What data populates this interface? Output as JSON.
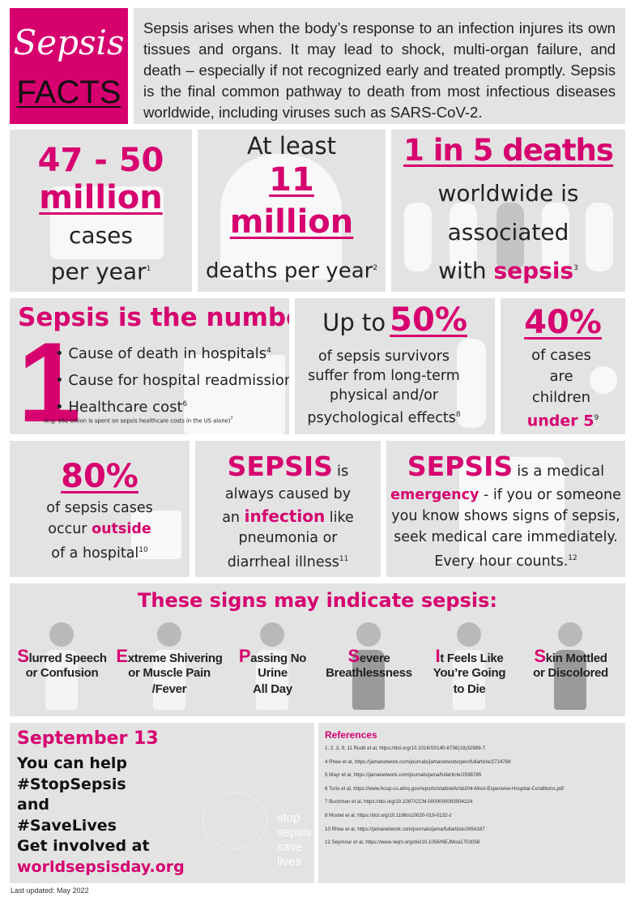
{
  "header": {
    "logo_top": "Sepsis",
    "logo_bottom": "FACTS",
    "intro": "Sepsis arises when the body’s response to an infection injures its own tissues and organs. It may lead to shock, multi-organ failure, and death – especially if not recognized early and treated promptly. Sepsis is the final common pathway to death from most infectious diseases worldwide, including viruses such as SARS-CoV-2."
  },
  "stats": {
    "cases": {
      "number": "47 - 50",
      "unit": "million",
      "line1": "cases",
      "line2": "per year",
      "ref": "1"
    },
    "deaths": {
      "pre": "At least",
      "number": "11",
      "unit": "million",
      "line": "deaths per year",
      "ref": "2"
    },
    "ratio": {
      "headline": "1 in 5 deaths",
      "line1": "worldwide is",
      "line2": "associated",
      "line3_pre": "with",
      "line3_em": "sepsis",
      "ref": "3"
    }
  },
  "number_one": {
    "title": "Sepsis is the number",
    "digit": "1",
    "items": [
      {
        "text": "Cause of death in hospitals",
        "ref": "4"
      },
      {
        "text": "Cause for hospital readmissions",
        "ref": "5"
      },
      {
        "text": "Healthcare cost",
        "ref": "6"
      }
    ],
    "note": "(e.g. $62 billion is spent on sepsis healthcare costs in the US alone)",
    "note_ref": "7"
  },
  "survivors": {
    "pre": "Up to",
    "percent": "50%",
    "line1": "of sepsis survivors",
    "line2": "suffer from long-term",
    "line3": "physical and/or",
    "line4": "psychological effects",
    "ref": "8"
  },
  "children": {
    "percent": "40%",
    "line1": "of cases",
    "line2": "are",
    "line3": "children",
    "line4": "under 5",
    "ref": "9"
  },
  "outside": {
    "percent": "80%",
    "line1": "of sepsis cases",
    "line2_pre": "occur",
    "line2_em": "outside",
    "line3": "of a hospital",
    "ref": "10"
  },
  "infection": {
    "title": "SEPSIS",
    "title_suffix": "is",
    "line1": "always caused by",
    "line2_pre": "an",
    "line2_em": "infection",
    "line2_post": "like",
    "line3": "pneumonia or",
    "line4": "diarrheal illness",
    "ref": "11"
  },
  "emergency": {
    "title": "SEPSIS",
    "title_suffix": "is a medical",
    "line1_em": "emergency",
    "line1_post": "- if you or someone",
    "line2": "you know shows signs of sepsis,",
    "line3": "seek medical care immediately.",
    "line4": "Every hour counts.",
    "ref": "12"
  },
  "signs": {
    "title": "These signs may indicate sepsis:",
    "items": [
      {
        "cap": "S",
        "rest": "lurred Speech",
        "line2": "or Confusion",
        "line3": ""
      },
      {
        "cap": "E",
        "rest": "xtreme Shivering",
        "line2": "or Muscle Pain",
        "line3": "/Fever"
      },
      {
        "cap": "P",
        "rest": "assing No",
        "line2": "Urine",
        "line3": "All Day"
      },
      {
        "cap": "S",
        "rest": "evere",
        "line2": "Breathlessness",
        "line3": ""
      },
      {
        "cap": "I",
        "rest": "t Feels Like",
        "line2": "You’re Going",
        "line3": "to Die"
      },
      {
        "cap": "S",
        "rest": "kin Mottled",
        "line2": "or Discolored",
        "line3": ""
      }
    ]
  },
  "help": {
    "date": "September 13",
    "line1": "You can help",
    "line2": "#StopSepsis",
    "line3": "and",
    "line4": "#SaveLives",
    "line5": "Get involved at",
    "url": "worldsepsisday.org",
    "watermark": [
      "stop",
      "sepsis",
      "save",
      "lives"
    ]
  },
  "references": {
    "title": "References",
    "items": [
      "1, 2, 3, 9, 11 Rudd et al, https://doi.org/10.1016/S0140-6736(19)32989-7.",
      "4 Rhee et al, https://jamanetwork.com/journals/jamanetworkopen/fullarticle/2724768",
      "5 Mayr et al, https://jamanetwork.com/journals/jama/fullarticle/2598785",
      "6 Torio et al, https://www.hcup-us.ahrq.gov/reports/statbriefs/sb204-Most-Expensive-Hospital-Conditions.pdf",
      "7 Buchman et al, https://doi.org/10.1097/CCM.0000000000004224",
      "8 Mostel et al, https://doi.org/10.1186/s10020-019-0132-z",
      "10 Rhee et al, https://jamanetwork.com/journals/jama/fullarticle/2654187",
      "12 Seymour et al, https://www.nejm.org/doi/10.1056/NEJMoa1703058"
    ]
  },
  "footer": {
    "updated": "Last updated: May 2022"
  },
  "colors": {
    "accent": "#d6006f",
    "panel": "#e3e3e3",
    "text": "#222222"
  }
}
